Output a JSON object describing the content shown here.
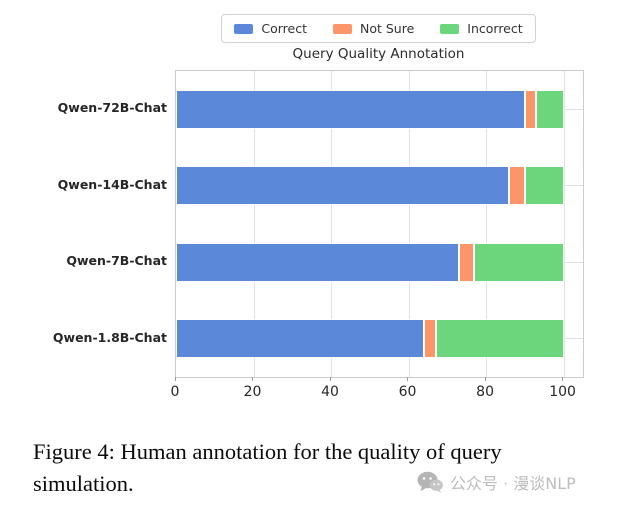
{
  "title": "Query Quality Annotation",
  "legend": {
    "items": [
      {
        "label": "Correct",
        "color": "#5b88d8"
      },
      {
        "label": "Not Sure",
        "color": "#fc9569"
      },
      {
        "label": "Incorrect",
        "color": "#6cd67d"
      }
    ]
  },
  "chart_data": {
    "type": "bar",
    "orientation": "horizontal",
    "stacked": true,
    "title": "Query Quality Annotation",
    "categories": [
      "Qwen-72B-Chat",
      "Qwen-14B-Chat",
      "Qwen-7B-Chat",
      "Qwen-1.8B-Chat"
    ],
    "series": [
      {
        "name": "Correct",
        "color": "#5b88d8",
        "values": [
          90,
          86,
          73,
          64
        ]
      },
      {
        "name": "Not Sure",
        "color": "#fc9569",
        "values": [
          3,
          4,
          4,
          3
        ]
      },
      {
        "name": "Incorrect",
        "color": "#6cd67d",
        "values": [
          7,
          10,
          23,
          33
        ]
      }
    ],
    "xlim": [
      0,
      105
    ],
    "xticks": [
      0,
      20,
      40,
      60,
      80,
      100
    ],
    "grid": true,
    "legend_position": "top"
  },
  "caption": {
    "lines": [
      "Figure 4:  Human annotation for the quality of query",
      "simulation."
    ]
  },
  "watermark": {
    "icon": "wechat-icon",
    "text": "公众号 · 漫谈NLP"
  },
  "colors": {
    "grid": "#e2e2e2",
    "spine": "#cccccc",
    "tick_text": "#262626",
    "watermark_gray": "#bdbdbd"
  }
}
